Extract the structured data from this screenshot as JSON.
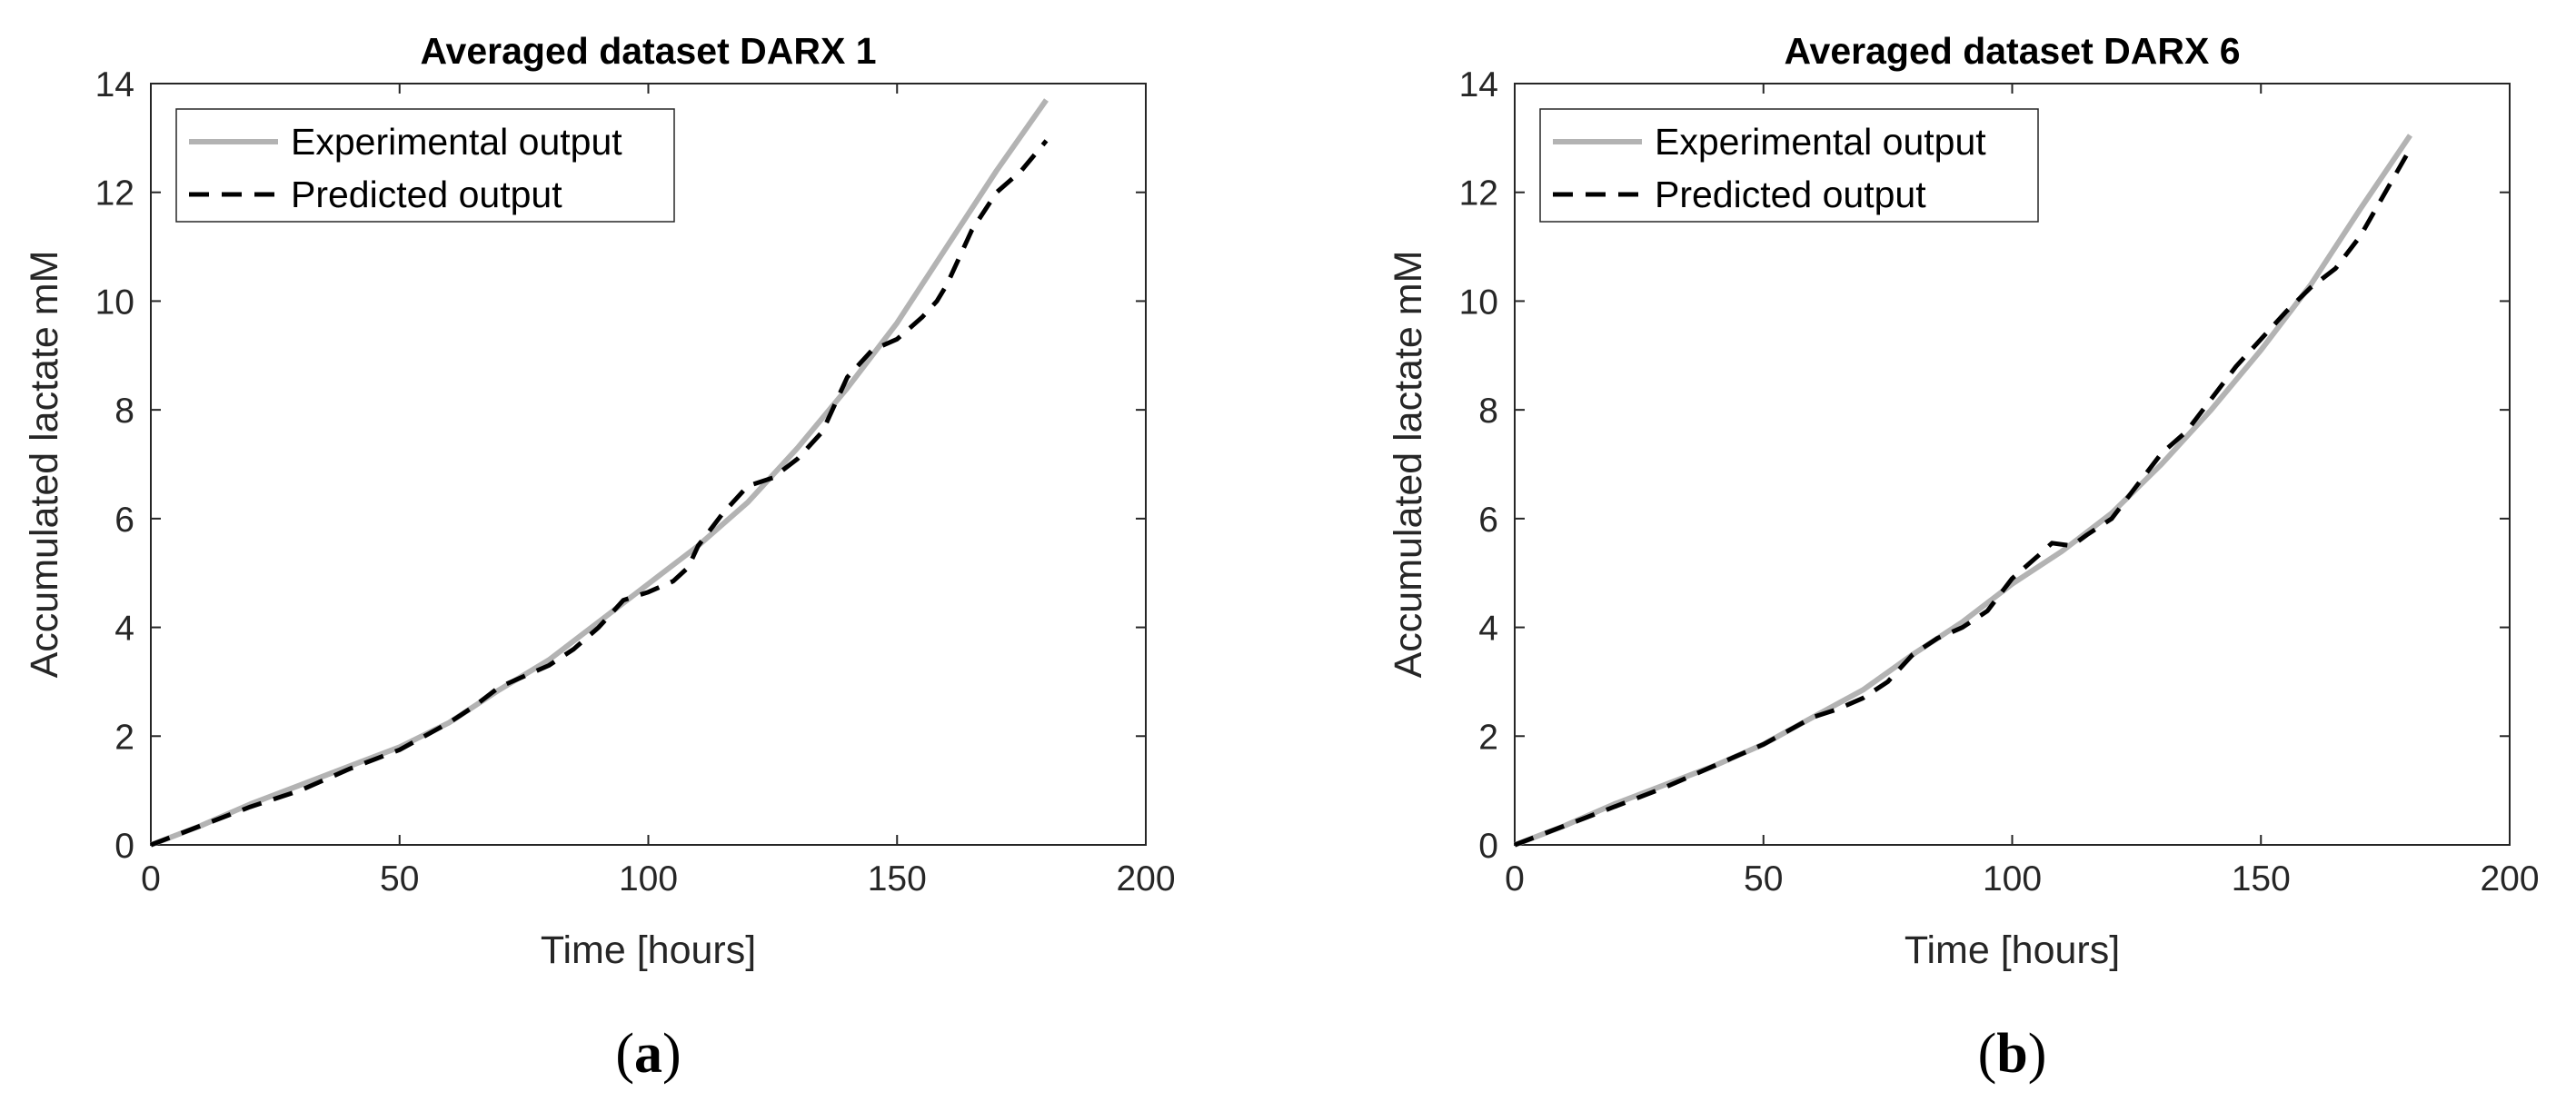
{
  "chart_data": [
    {
      "type": "line",
      "panel_label": "a",
      "title": "Averaged dataset DARX 1",
      "xlabel": "Time [hours]",
      "ylabel": "Accumulated lactate mM",
      "xlim": [
        0,
        200
      ],
      "ylim": [
        0,
        14
      ],
      "xticks": [
        "0",
        "50",
        "100",
        "150",
        "200"
      ],
      "yticks": [
        "0",
        "2",
        "4",
        "6",
        "8",
        "10",
        "12",
        "14"
      ],
      "grid": false,
      "legend_position": "top-left",
      "series": [
        {
          "name": "Experimental output",
          "color": "#b3b3b3",
          "style": "solid",
          "x": [
            0,
            10,
            20,
            30,
            40,
            50,
            60,
            70,
            80,
            90,
            100,
            110,
            120,
            130,
            140,
            150,
            160,
            170,
            180
          ],
          "y": [
            0,
            0.35,
            0.75,
            1.1,
            1.45,
            1.8,
            2.25,
            2.85,
            3.4,
            4.1,
            4.8,
            5.5,
            6.3,
            7.3,
            8.4,
            9.6,
            11.0,
            12.4,
            13.7
          ]
        },
        {
          "name": "Predicted output",
          "color": "#000000",
          "style": "dashed",
          "x": [
            0,
            10,
            20,
            30,
            40,
            50,
            60,
            65,
            70,
            80,
            85,
            90,
            95,
            100,
            105,
            108,
            110,
            115,
            120,
            125,
            130,
            135,
            140,
            145,
            150,
            155,
            158,
            160,
            165,
            170,
            175,
            180
          ],
          "y": [
            0,
            0.35,
            0.7,
            1.0,
            1.4,
            1.75,
            2.25,
            2.55,
            2.9,
            3.3,
            3.6,
            4.0,
            4.5,
            4.65,
            4.85,
            5.1,
            5.5,
            6.1,
            6.6,
            6.75,
            7.1,
            7.6,
            8.6,
            9.1,
            9.3,
            9.7,
            10.0,
            10.3,
            11.3,
            12.0,
            12.4,
            12.95
          ]
        }
      ]
    },
    {
      "type": "line",
      "panel_label": "b",
      "title": "Averaged dataset DARX 6",
      "xlabel": "Time [hours]",
      "ylabel": "Accumulated lactate mM",
      "xlim": [
        0,
        200
      ],
      "ylim": [
        0,
        14
      ],
      "xticks": [
        "0",
        "50",
        "100",
        "150",
        "200"
      ],
      "yticks": [
        "0",
        "2",
        "4",
        "6",
        "8",
        "10",
        "12",
        "14"
      ],
      "grid": false,
      "legend_position": "top-left",
      "series": [
        {
          "name": "Experimental output",
          "color": "#b3b3b3",
          "style": "solid",
          "x": [
            0,
            10,
            20,
            30,
            40,
            50,
            60,
            70,
            80,
            90,
            100,
            110,
            120,
            130,
            140,
            150,
            160,
            170,
            180
          ],
          "y": [
            0,
            0.35,
            0.75,
            1.1,
            1.45,
            1.85,
            2.35,
            2.85,
            3.5,
            4.1,
            4.8,
            5.4,
            6.1,
            7.0,
            8.0,
            9.1,
            10.3,
            11.7,
            13.05
          ]
        },
        {
          "name": "Predicted output",
          "color": "#000000",
          "style": "dashed",
          "x": [
            0,
            10,
            20,
            30,
            40,
            50,
            60,
            65,
            70,
            75,
            80,
            85,
            90,
            95,
            100,
            105,
            108,
            112,
            115,
            120,
            125,
            130,
            135,
            140,
            145,
            150,
            155,
            160,
            165,
            170,
            175,
            180
          ],
          "y": [
            0,
            0.35,
            0.7,
            1.05,
            1.45,
            1.85,
            2.35,
            2.5,
            2.7,
            3.0,
            3.5,
            3.8,
            4.0,
            4.3,
            4.9,
            5.3,
            5.55,
            5.5,
            5.7,
            6.0,
            6.6,
            7.2,
            7.6,
            8.2,
            8.8,
            9.3,
            9.8,
            10.25,
            10.6,
            11.2,
            12.0,
            12.8
          ]
        }
      ]
    }
  ]
}
